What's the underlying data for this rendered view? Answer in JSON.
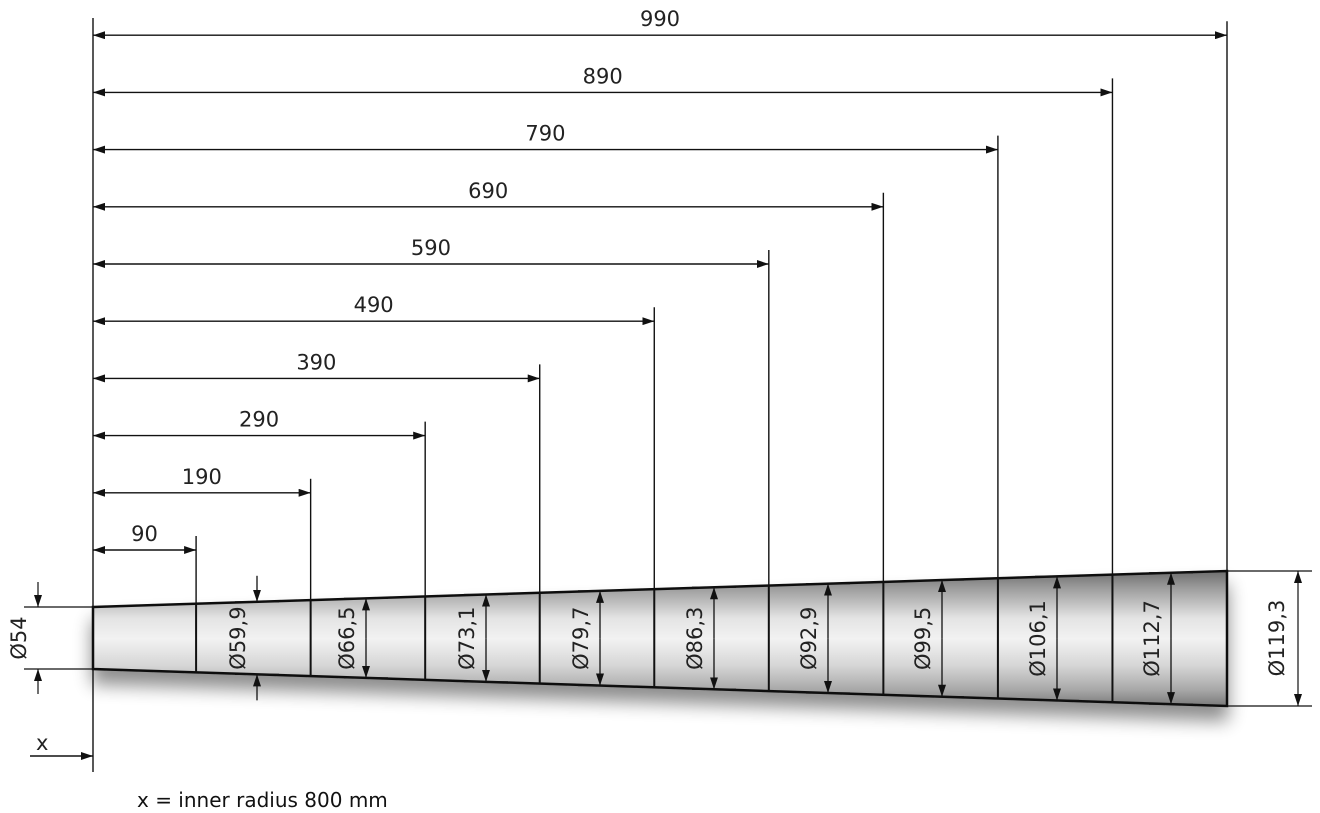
{
  "dimensions": {
    "lengths": [
      "90",
      "190",
      "290",
      "390",
      "490",
      "590",
      "690",
      "790",
      "890",
      "990"
    ],
    "diameters": [
      "Ø59,9",
      "Ø66,5",
      "Ø73,1",
      "Ø79,7",
      "Ø86,3",
      "Ø92,9",
      "Ø99,5",
      "Ø106,1",
      "Ø112,7"
    ],
    "start_diameter": "Ø54",
    "end_diameter": "Ø119,3"
  },
  "axis_label": "x",
  "note": "x = inner radius 800 mm"
}
